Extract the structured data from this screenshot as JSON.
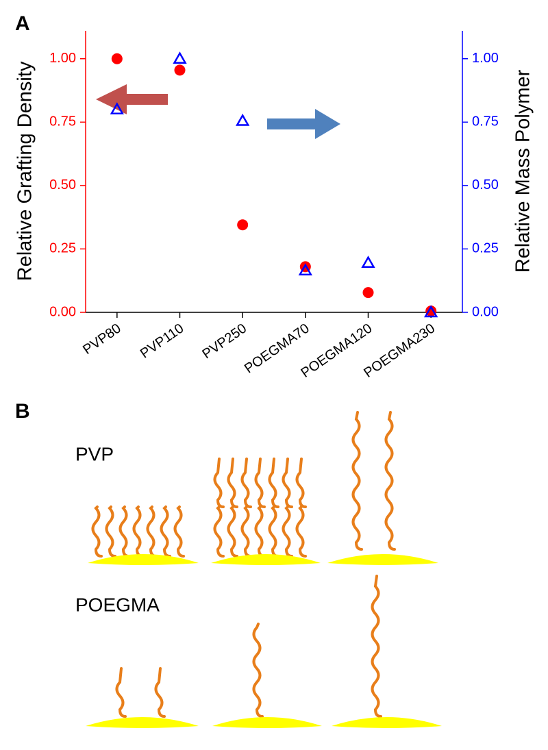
{
  "panel_labels": [
    "A",
    "B"
  ],
  "chart_data": {
    "type": "scatter",
    "categories": [
      "PVP80",
      "PVP110",
      "PVP250",
      "POEGMA70",
      "POEGMA120",
      "POEGMA230"
    ],
    "y_label": "Relative Grafting Density",
    "y2_label": "Relative Mass Polymer",
    "series": [
      {
        "color": "#ff0000",
        "marker": "circle",
        "values": [
          1.0,
          0.955,
          0.345,
          0.18,
          0.078,
          0.005
        ]
      },
      {
        "color": "#0000ff",
        "marker": "triangle",
        "axis": "y2",
        "values": [
          0.8,
          1.0,
          0.755,
          0.165,
          0.195,
          0.0
        ]
      }
    ],
    "ylim": [
      0,
      1.11
    ],
    "yticks": [
      {
        "value": 0,
        "label": "0.00"
      },
      {
        "value": 0.25,
        "label": "0.25"
      },
      {
        "value": 0.5,
        "label": "0.50"
      },
      {
        "value": 0.75,
        "label": "0.75"
      },
      {
        "value": 1,
        "label": "1.00"
      }
    ],
    "y2lim": [
      0,
      1.11
    ],
    "y2ticks": [
      {
        "value": 0,
        "label": "0.00"
      },
      {
        "value": 0.25,
        "label": "0.25"
      },
      {
        "value": 0.5,
        "label": "0.50"
      },
      {
        "value": 0.75,
        "label": "0.75"
      },
      {
        "value": 1,
        "label": "1.00"
      }
    ]
  },
  "diagram": {
    "rows": [
      {
        "label": "PVP"
      },
      {
        "label": "POEGMA"
      }
    ]
  }
}
